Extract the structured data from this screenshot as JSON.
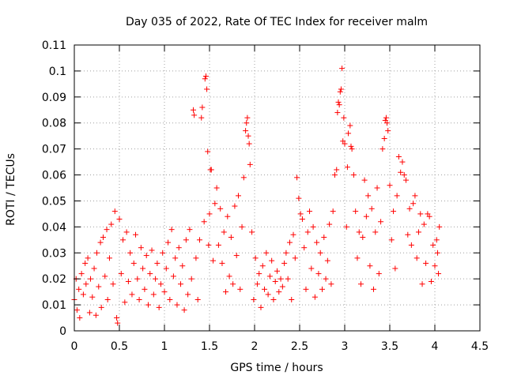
{
  "chart_data": {
    "type": "scatter",
    "title": "Day 035 of 2022, Rate Of TEC Index for receiver malm",
    "xlabel": "GPS time / hours",
    "ylabel": "ROTI / TECUs",
    "xlim": [
      0,
      4.5
    ],
    "ylim": [
      0,
      0.11
    ],
    "xticks": [
      0,
      0.5,
      1,
      1.5,
      2,
      2.5,
      3,
      3.5,
      4,
      4.5
    ],
    "xtick_labels": [
      "0",
      "0.5",
      "1",
      "1.5",
      "2",
      "2.5",
      "3",
      "3.5",
      "4",
      "4.5"
    ],
    "yticks": [
      0,
      0.01,
      0.02,
      0.03,
      0.04,
      0.05,
      0.06,
      0.07,
      0.08,
      0.09,
      0.1,
      0.11
    ],
    "ytick_labels": [
      "0",
      "0.01",
      "0.02",
      "0.03",
      "0.04",
      "0.05",
      "0.06",
      "0.07",
      "0.08",
      "0.09",
      "0.1",
      "0.11"
    ],
    "grid": true,
    "marker": "+",
    "color": "#ff0000",
    "series": [
      {
        "points": [
          [
            0.0,
            0.012
          ],
          [
            0.02,
            0.02
          ],
          [
            0.03,
            0.008
          ],
          [
            0.05,
            0.016
          ],
          [
            0.06,
            0.005
          ],
          [
            0.08,
            0.022
          ],
          [
            0.1,
            0.014
          ],
          [
            0.12,
            0.026
          ],
          [
            0.13,
            0.018
          ],
          [
            0.15,
            0.028
          ],
          [
            0.17,
            0.007
          ],
          [
            0.18,
            0.02
          ],
          [
            0.2,
            0.013
          ],
          [
            0.22,
            0.024
          ],
          [
            0.24,
            0.006
          ],
          [
            0.25,
            0.03
          ],
          [
            0.27,
            0.017
          ],
          [
            0.29,
            0.034
          ],
          [
            0.3,
            0.009
          ],
          [
            0.32,
            0.036
          ],
          [
            0.34,
            0.021
          ],
          [
            0.36,
            0.039
          ],
          [
            0.37,
            0.012
          ],
          [
            0.39,
            0.028
          ],
          [
            0.41,
            0.041
          ],
          [
            0.43,
            0.018
          ],
          [
            0.45,
            0.046
          ],
          [
            0.47,
            0.005
          ],
          [
            0.48,
            0.003
          ],
          [
            0.5,
            0.043
          ],
          [
            0.52,
            0.022
          ],
          [
            0.54,
            0.035
          ],
          [
            0.56,
            0.011
          ],
          [
            0.58,
            0.038
          ],
          [
            0.6,
            0.019
          ],
          [
            0.62,
            0.03
          ],
          [
            0.64,
            0.014
          ],
          [
            0.66,
            0.026
          ],
          [
            0.68,
            0.037
          ],
          [
            0.7,
            0.02
          ],
          [
            0.72,
            0.012
          ],
          [
            0.74,
            0.032
          ],
          [
            0.76,
            0.024
          ],
          [
            0.78,
            0.016
          ],
          [
            0.8,
            0.029
          ],
          [
            0.82,
            0.01
          ],
          [
            0.84,
            0.022
          ],
          [
            0.86,
            0.031
          ],
          [
            0.88,
            0.014
          ],
          [
            0.9,
            0.02
          ],
          [
            0.92,
            0.026
          ],
          [
            0.94,
            0.009
          ],
          [
            0.96,
            0.018
          ],
          [
            0.98,
            0.03
          ],
          [
            1.0,
            0.015
          ],
          [
            1.02,
            0.024
          ],
          [
            1.04,
            0.034
          ],
          [
            1.06,
            0.012
          ],
          [
            1.08,
            0.039
          ],
          [
            1.1,
            0.021
          ],
          [
            1.12,
            0.028
          ],
          [
            1.14,
            0.01
          ],
          [
            1.16,
            0.032
          ],
          [
            1.18,
            0.018
          ],
          [
            1.2,
            0.025
          ],
          [
            1.22,
            0.008
          ],
          [
            1.24,
            0.035
          ],
          [
            1.26,
            0.014
          ],
          [
            1.28,
            0.039
          ],
          [
            1.3,
            0.02
          ],
          [
            1.32,
            0.085
          ],
          [
            1.33,
            0.083
          ],
          [
            1.35,
            0.028
          ],
          [
            1.37,
            0.012
          ],
          [
            1.39,
            0.035
          ],
          [
            1.41,
            0.082
          ],
          [
            1.42,
            0.086
          ],
          [
            1.44,
            0.042
          ],
          [
            1.45,
            0.097
          ],
          [
            1.46,
            0.098
          ],
          [
            1.47,
            0.093
          ],
          [
            1.48,
            0.069
          ],
          [
            1.49,
            0.033
          ],
          [
            1.5,
            0.045
          ],
          [
            1.51,
            0.062
          ],
          [
            1.52,
            0.062
          ],
          [
            1.54,
            0.027
          ],
          [
            1.56,
            0.049
          ],
          [
            1.58,
            0.055
          ],
          [
            1.6,
            0.033
          ],
          [
            1.62,
            0.047
          ],
          [
            1.64,
            0.026
          ],
          [
            1.66,
            0.038
          ],
          [
            1.68,
            0.015
          ],
          [
            1.7,
            0.044
          ],
          [
            1.72,
            0.021
          ],
          [
            1.74,
            0.036
          ],
          [
            1.76,
            0.018
          ],
          [
            1.78,
            0.048
          ],
          [
            1.8,
            0.029
          ],
          [
            1.82,
            0.052
          ],
          [
            1.84,
            0.016
          ],
          [
            1.86,
            0.04
          ],
          [
            1.88,
            0.059
          ],
          [
            1.9,
            0.077
          ],
          [
            1.91,
            0.08
          ],
          [
            1.92,
            0.082
          ],
          [
            1.93,
            0.075
          ],
          [
            1.94,
            0.072
          ],
          [
            1.95,
            0.064
          ],
          [
            1.97,
            0.038
          ],
          [
            1.99,
            0.012
          ],
          [
            2.01,
            0.028
          ],
          [
            2.03,
            0.018
          ],
          [
            2.05,
            0.022
          ],
          [
            2.07,
            0.009
          ],
          [
            2.09,
            0.025
          ],
          [
            2.11,
            0.016
          ],
          [
            2.13,
            0.03
          ],
          [
            2.15,
            0.014
          ],
          [
            2.17,
            0.021
          ],
          [
            2.19,
            0.027
          ],
          [
            2.21,
            0.012
          ],
          [
            2.23,
            0.019
          ],
          [
            2.25,
            0.023
          ],
          [
            2.27,
            0.015
          ],
          [
            2.29,
            0.02
          ],
          [
            2.31,
            0.017
          ],
          [
            2.33,
            0.026
          ],
          [
            2.35,
            0.03
          ],
          [
            2.37,
            0.02
          ],
          [
            2.39,
            0.034
          ],
          [
            2.41,
            0.012
          ],
          [
            2.43,
            0.037
          ],
          [
            2.45,
            0.028
          ],
          [
            2.47,
            0.059
          ],
          [
            2.49,
            0.051
          ],
          [
            2.51,
            0.045
          ],
          [
            2.53,
            0.043
          ],
          [
            2.55,
            0.032
          ],
          [
            2.57,
            0.016
          ],
          [
            2.59,
            0.038
          ],
          [
            2.61,
            0.046
          ],
          [
            2.63,
            0.024
          ],
          [
            2.65,
            0.04
          ],
          [
            2.67,
            0.013
          ],
          [
            2.69,
            0.034
          ],
          [
            2.71,
            0.022
          ],
          [
            2.73,
            0.03
          ],
          [
            2.75,
            0.016
          ],
          [
            2.77,
            0.036
          ],
          [
            2.79,
            0.02
          ],
          [
            2.81,
            0.027
          ],
          [
            2.83,
            0.041
          ],
          [
            2.85,
            0.018
          ],
          [
            2.87,
            0.046
          ],
          [
            2.89,
            0.06
          ],
          [
            2.91,
            0.062
          ],
          [
            2.92,
            0.084
          ],
          [
            2.93,
            0.088
          ],
          [
            2.94,
            0.087
          ],
          [
            2.95,
            0.092
          ],
          [
            2.96,
            0.093
          ],
          [
            2.97,
            0.101
          ],
          [
            2.98,
            0.073
          ],
          [
            2.99,
            0.082
          ],
          [
            3.0,
            0.072
          ],
          [
            3.02,
            0.04
          ],
          [
            3.03,
            0.063
          ],
          [
            3.04,
            0.076
          ],
          [
            3.06,
            0.079
          ],
          [
            3.07,
            0.071
          ],
          [
            3.08,
            0.07
          ],
          [
            3.1,
            0.06
          ],
          [
            3.12,
            0.046
          ],
          [
            3.14,
            0.028
          ],
          [
            3.16,
            0.038
          ],
          [
            3.18,
            0.018
          ],
          [
            3.2,
            0.036
          ],
          [
            3.22,
            0.058
          ],
          [
            3.24,
            0.044
          ],
          [
            3.26,
            0.052
          ],
          [
            3.28,
            0.025
          ],
          [
            3.3,
            0.047
          ],
          [
            3.32,
            0.016
          ],
          [
            3.34,
            0.038
          ],
          [
            3.36,
            0.055
          ],
          [
            3.38,
            0.022
          ],
          [
            3.4,
            0.042
          ],
          [
            3.42,
            0.07
          ],
          [
            3.44,
            0.074
          ],
          [
            3.45,
            0.081
          ],
          [
            3.46,
            0.082
          ],
          [
            3.47,
            0.08
          ],
          [
            3.48,
            0.077
          ],
          [
            3.5,
            0.056
          ],
          [
            3.52,
            0.035
          ],
          [
            3.54,
            0.046
          ],
          [
            3.56,
            0.024
          ],
          [
            3.58,
            0.052
          ],
          [
            3.6,
            0.067
          ],
          [
            3.62,
            0.061
          ],
          [
            3.64,
            0.065
          ],
          [
            3.66,
            0.06
          ],
          [
            3.68,
            0.058
          ],
          [
            3.7,
            0.037
          ],
          [
            3.72,
            0.047
          ],
          [
            3.74,
            0.033
          ],
          [
            3.76,
            0.049
          ],
          [
            3.78,
            0.052
          ],
          [
            3.8,
            0.028
          ],
          [
            3.82,
            0.038
          ],
          [
            3.84,
            0.045
          ],
          [
            3.86,
            0.018
          ],
          [
            3.88,
            0.041
          ],
          [
            3.9,
            0.026
          ],
          [
            3.92,
            0.045
          ],
          [
            3.94,
            0.044
          ],
          [
            3.96,
            0.019
          ],
          [
            3.98,
            0.033
          ],
          [
            4.0,
            0.025
          ],
          [
            4.02,
            0.035
          ],
          [
            4.03,
            0.03
          ],
          [
            4.04,
            0.022
          ],
          [
            4.05,
            0.04
          ]
        ]
      }
    ]
  }
}
